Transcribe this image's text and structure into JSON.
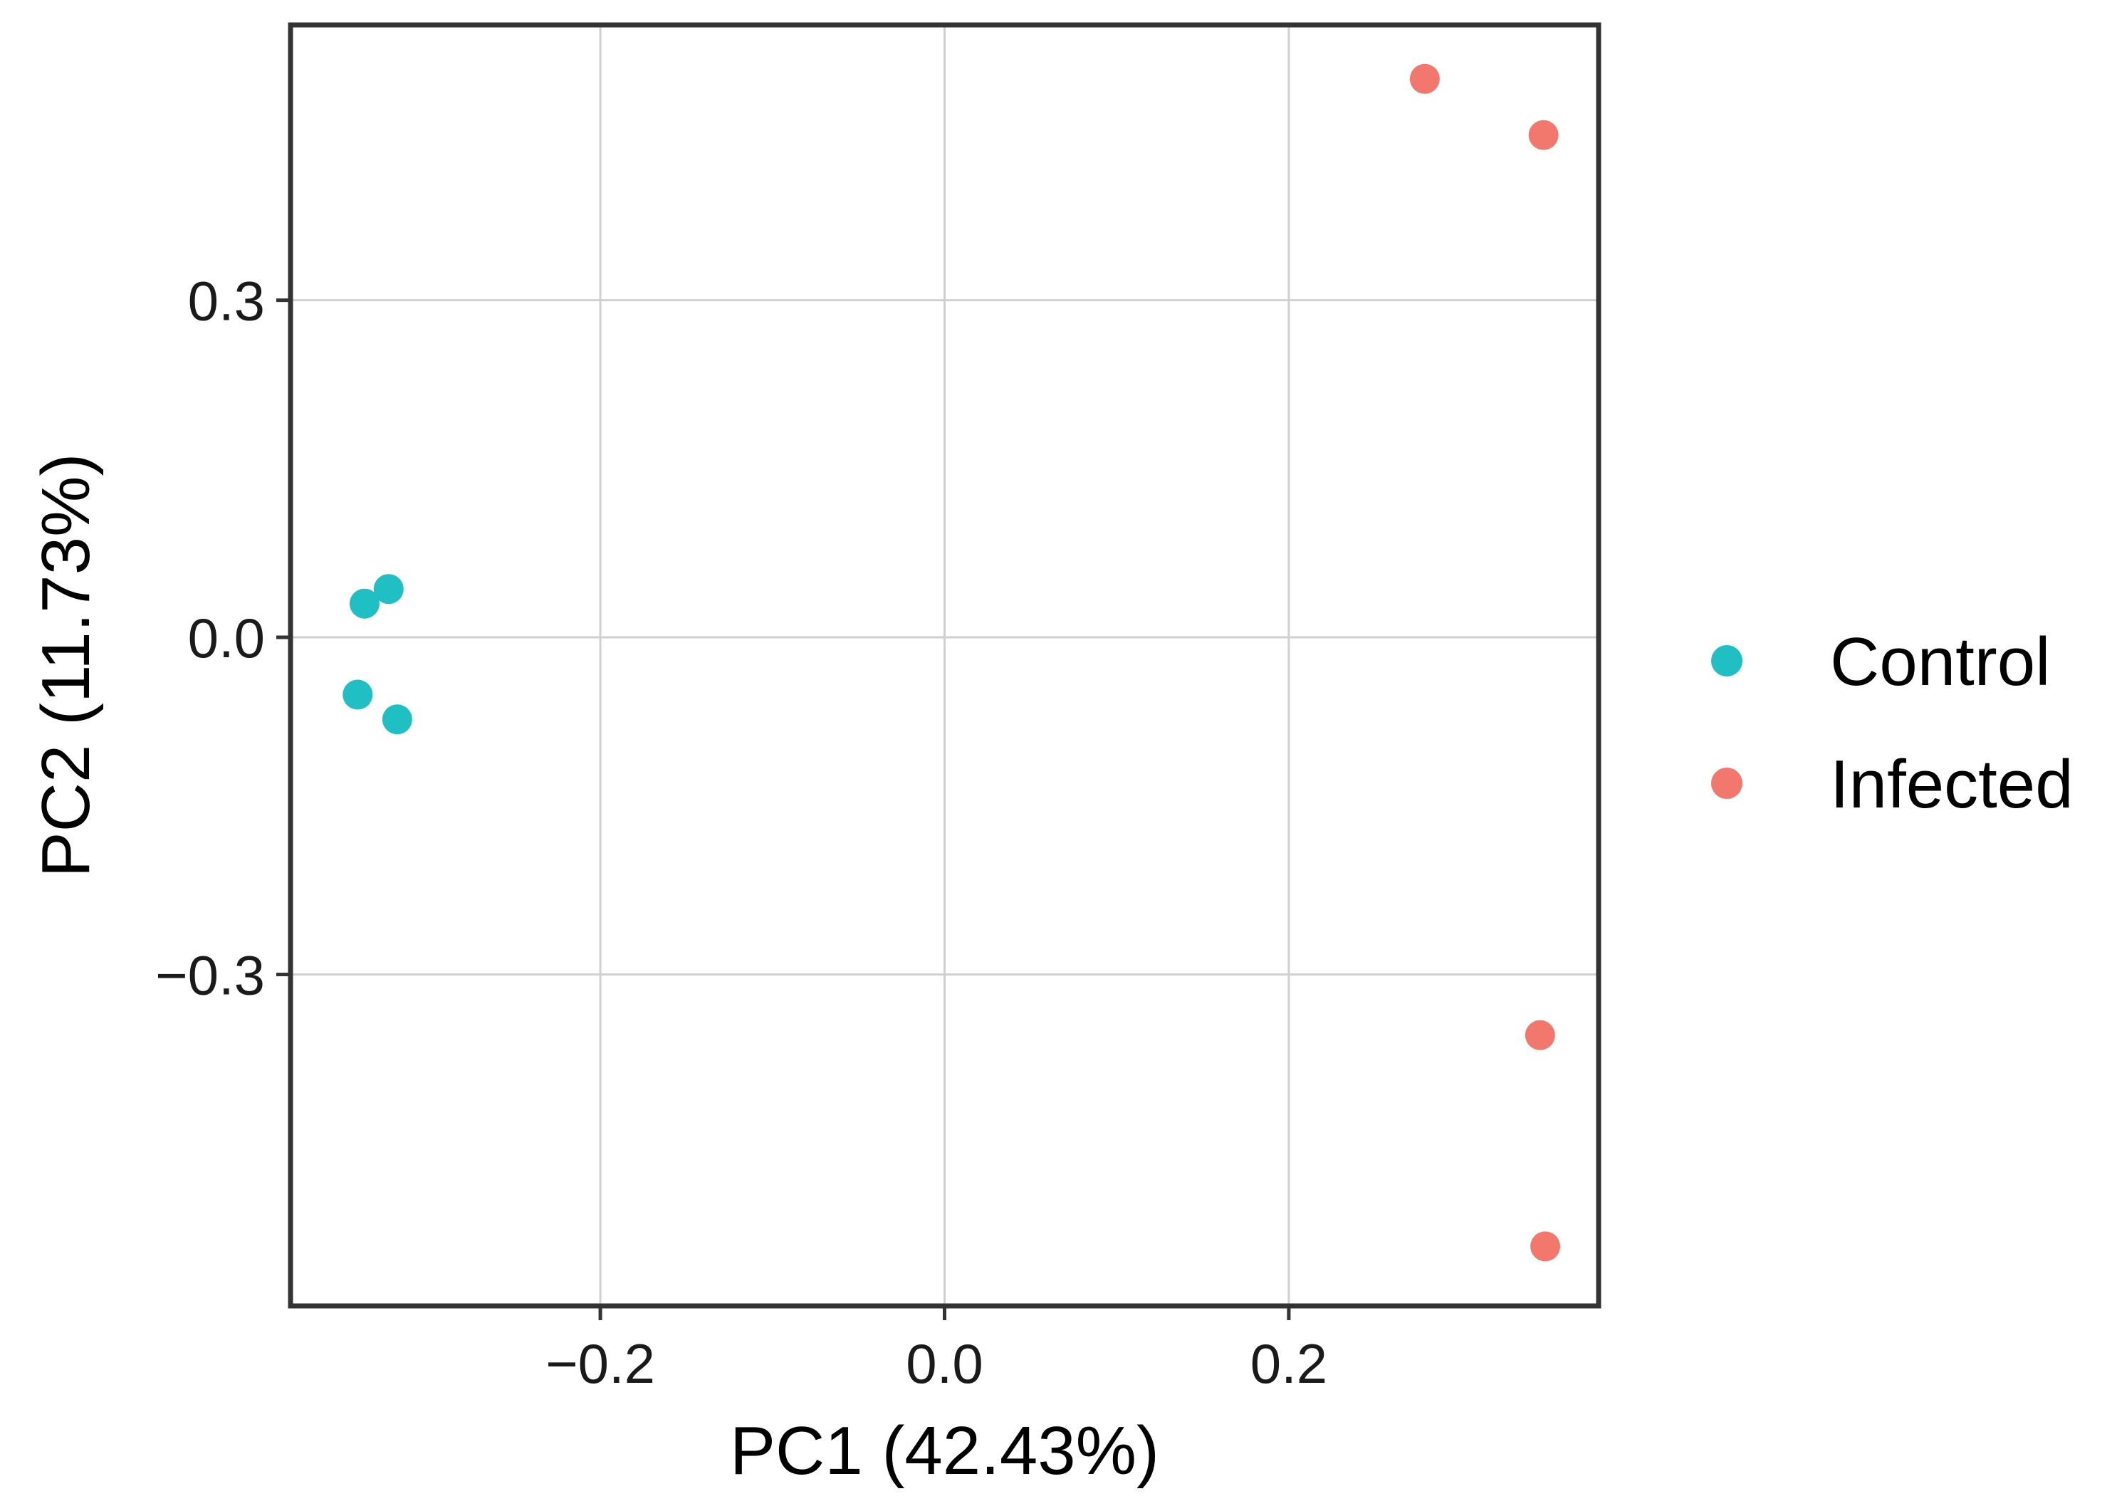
{
  "chart_data": {
    "type": "scatter",
    "title": "",
    "xlabel": "PC1 (42.43%)",
    "ylabel": "PC2 (11.73%)",
    "xlim": [
      -0.38,
      0.38
    ],
    "ylim": [
      -0.595,
      0.545
    ],
    "x_ticks": [
      -0.2,
      0.0,
      0.2
    ],
    "y_ticks": [
      -0.3,
      0.0,
      0.3
    ],
    "x_tick_labels": [
      "−0.2",
      "0.0",
      "0.2"
    ],
    "y_tick_labels": [
      "−0.3",
      "0.0",
      "0.3"
    ],
    "grid": true,
    "legend_position": "right",
    "series": [
      {
        "name": "Control",
        "color": "#1FBFC4",
        "points": [
          {
            "x": -0.337,
            "y": 0.03
          },
          {
            "x": -0.323,
            "y": 0.043
          },
          {
            "x": -0.341,
            "y": -0.051
          },
          {
            "x": -0.318,
            "y": -0.073
          }
        ]
      },
      {
        "name": "Infected",
        "color": "#F2786E",
        "points": [
          {
            "x": 0.279,
            "y": 0.497
          },
          {
            "x": 0.348,
            "y": 0.447
          },
          {
            "x": 0.346,
            "y": -0.354
          },
          {
            "x": 0.349,
            "y": -0.542
          }
        ]
      }
    ]
  }
}
